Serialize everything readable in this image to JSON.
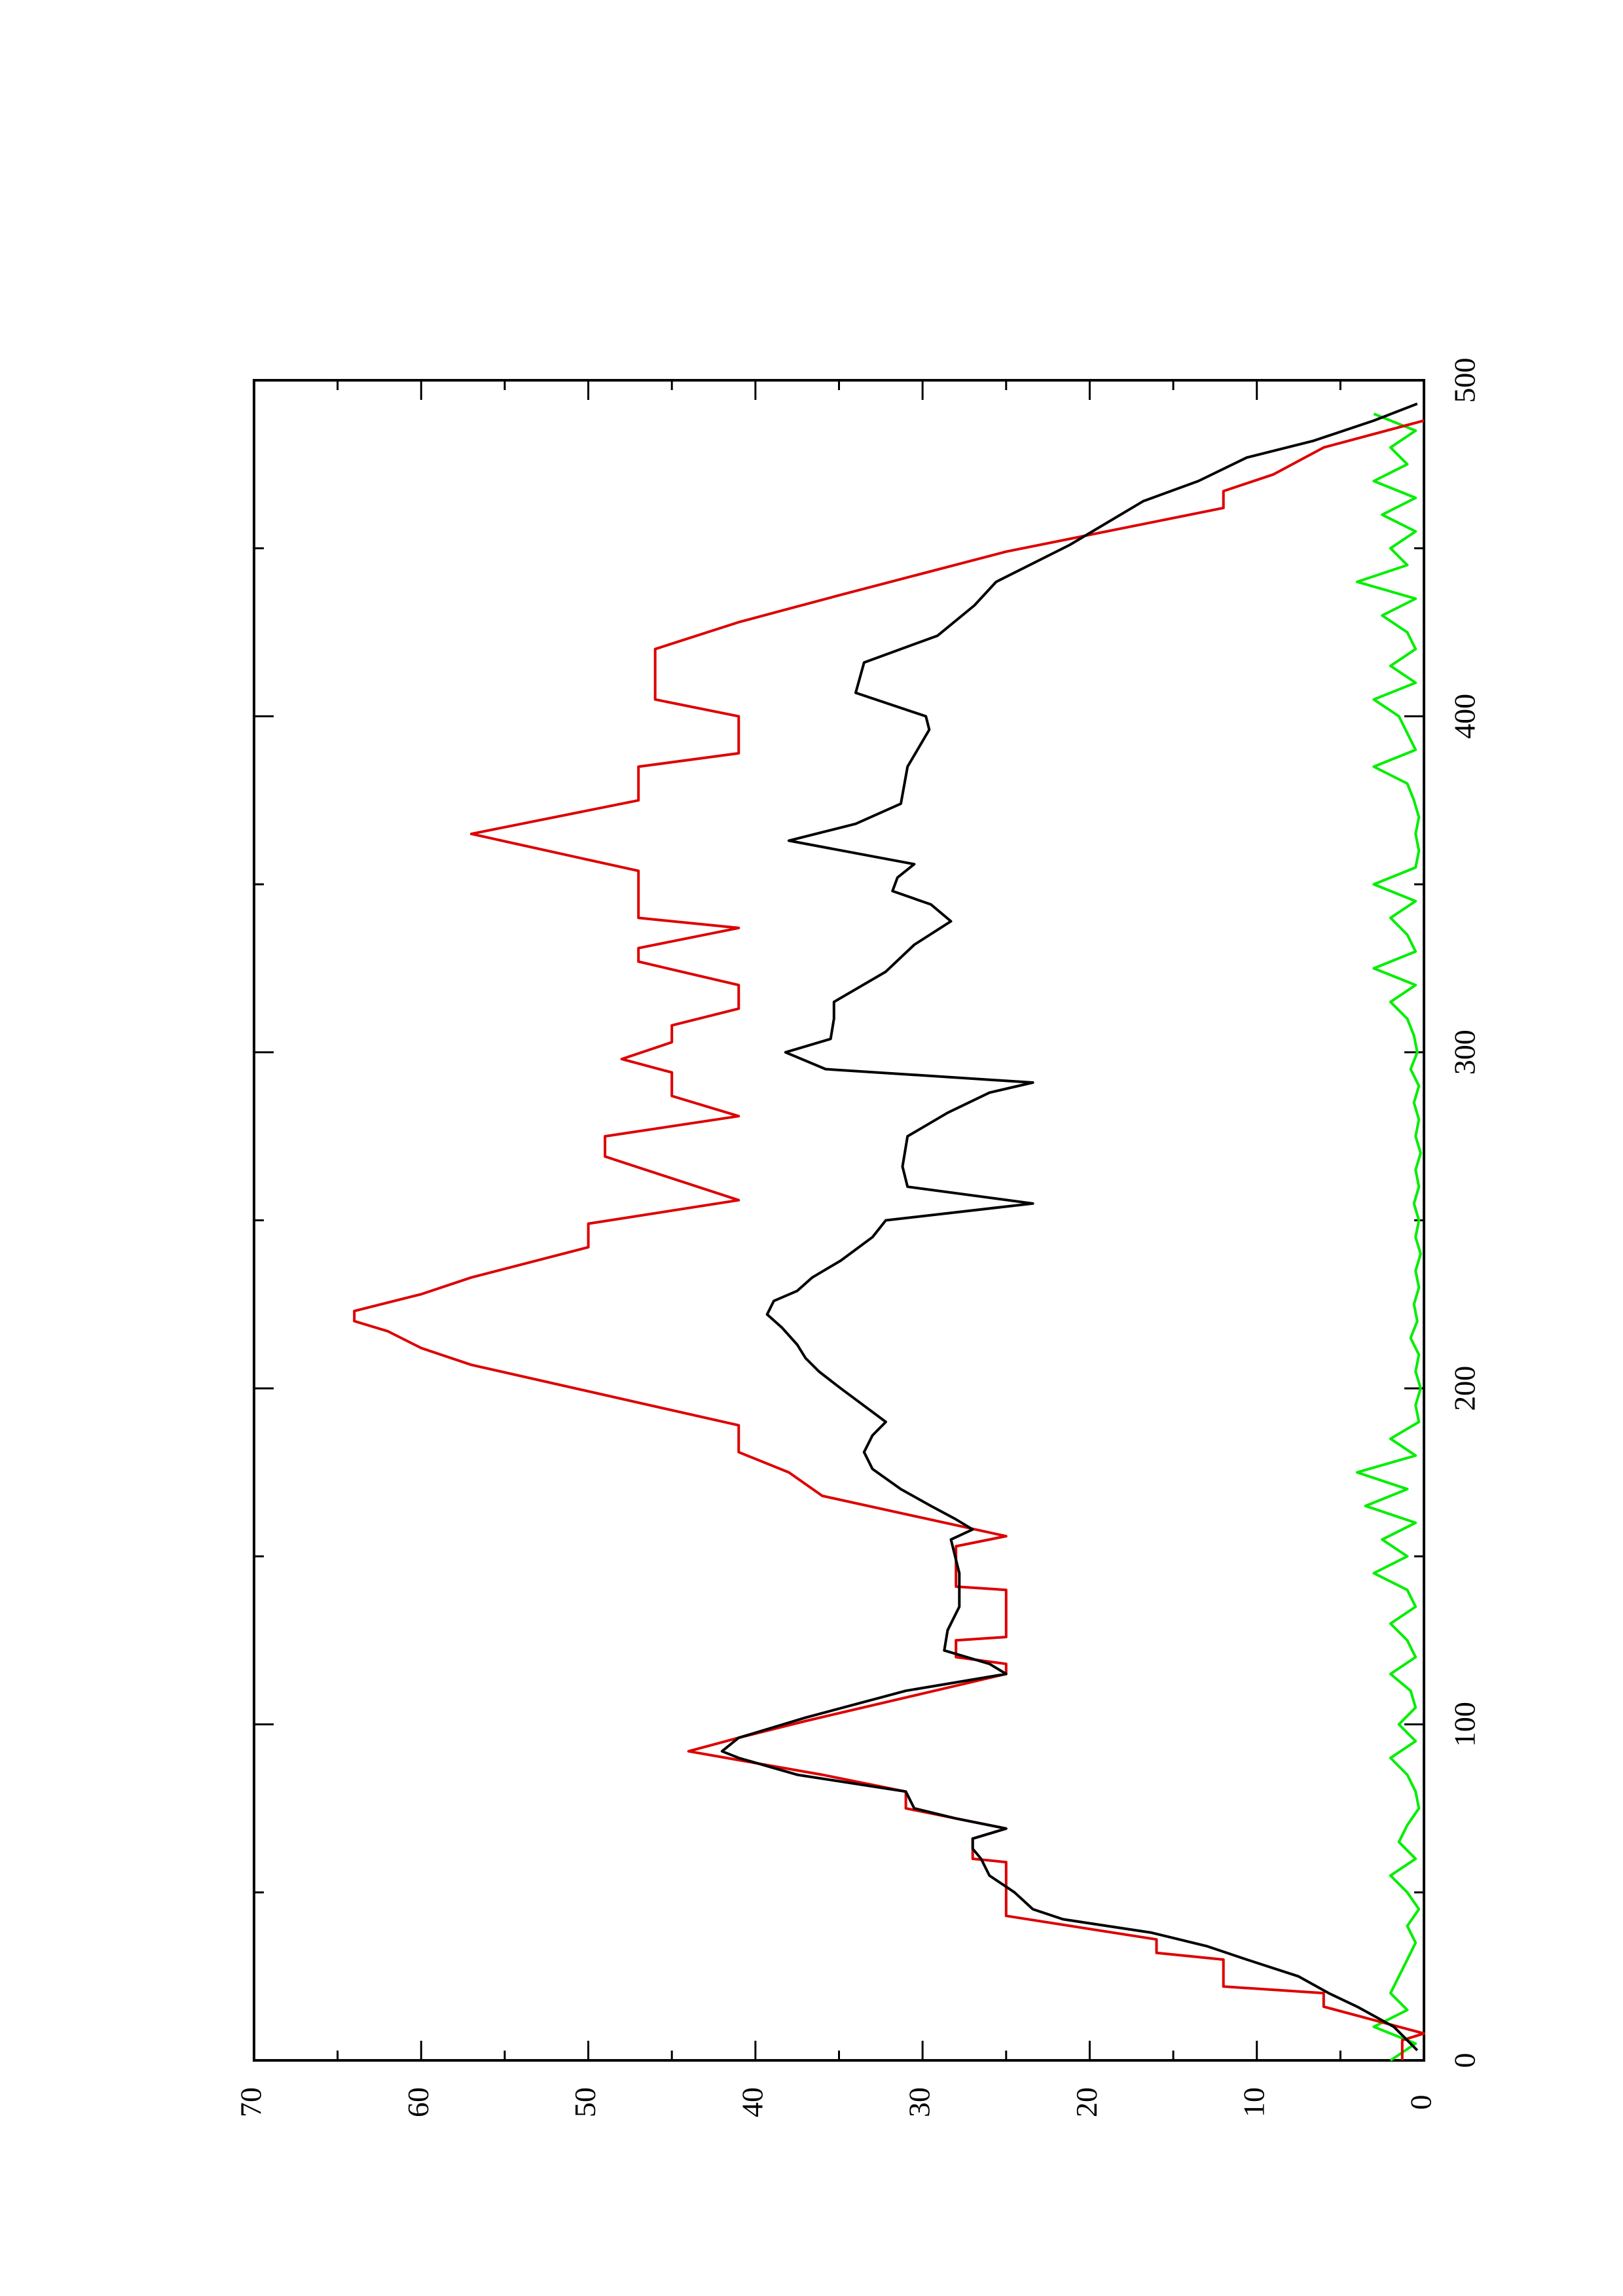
{
  "chart_data": {
    "type": "line",
    "xlim": [
      0,
      500
    ],
    "xticks": [
      0,
      100,
      200,
      300,
      400,
      500
    ],
    "x_minor_ticks": [
      50,
      150,
      250,
      350,
      450
    ],
    "ylim": [
      0,
      70
    ],
    "yticks": [
      0,
      10,
      20,
      30,
      40,
      50,
      60,
      70
    ],
    "y_minor_ticks": [
      5,
      15,
      25,
      35,
      45,
      55,
      65
    ],
    "rotated": true,
    "series": [
      {
        "color": "#000000",
        "x": [
          3,
          10,
          16,
          20,
          25,
          30,
          34,
          38,
          42,
          45,
          50,
          55,
          60,
          63,
          66,
          69,
          72,
          75,
          80,
          85,
          90,
          92,
          96,
          102,
          110,
          115,
          118,
          122,
          128,
          135,
          145,
          155,
          158,
          161,
          165,
          170,
          176,
          181,
          186,
          190,
          200,
          205,
          209,
          213,
          218,
          222,
          226,
          229,
          233,
          238,
          245,
          250,
          255,
          260,
          266,
          275,
          282,
          288,
          291,
          295,
          300,
          304,
          310,
          315,
          324,
          332,
          339,
          344,
          348,
          352,
          356,
          363,
          368,
          374,
          385,
          396,
          400,
          407,
          416,
          424,
          433,
          440,
          451,
          464,
          470,
          477,
          482,
          488,
          493
        ],
        "values": [
          0.4,
          1.8,
          4,
          5.7,
          7.5,
          10.6,
          13,
          16.3,
          21.6,
          23.4,
          24.5,
          26,
          26.5,
          27,
          27,
          25,
          28,
          30.5,
          31,
          37.5,
          41,
          42,
          41,
          37,
          31,
          25,
          26,
          28.7,
          28.5,
          27.8,
          27.8,
          28.3,
          27,
          28,
          29.5,
          31.3,
          33,
          33.5,
          33,
          32.2,
          34.9,
          36.2,
          37,
          37.5,
          38.4,
          39.3,
          38.9,
          37.5,
          36.6,
          34.9,
          33,
          32.2,
          23.4,
          30.9,
          31.2,
          30.9,
          28.5,
          26,
          23.4,
          35.8,
          38.2,
          35.5,
          35.3,
          35.3,
          32.2,
          30.5,
          28.3,
          29.5,
          31.8,
          31.5,
          30.5,
          38,
          34,
          31.3,
          30.9,
          29.6,
          29.8,
          34,
          33.5,
          29.1,
          26.9,
          25.6,
          21.2,
          16.8,
          13.5,
          10.6,
          6.6,
          3,
          0.4
        ]
      },
      {
        "color": "#dd0000",
        "x": [
          0,
          6,
          8,
          16,
          20,
          22,
          30,
          32,
          36,
          43,
          59,
          60,
          66,
          69,
          75,
          80,
          85,
          92,
          96,
          101,
          115,
          118,
          120,
          125,
          126,
          140,
          141,
          153,
          156,
          168,
          175,
          181,
          189,
          207,
          212,
          217,
          220,
          223,
          228,
          233,
          242,
          249,
          256,
          269,
          275,
          281,
          287,
          294,
          298,
          303,
          308,
          313,
          320,
          327,
          331,
          337,
          340,
          347,
          354,
          365,
          375,
          385,
          389,
          400,
          405,
          420,
          428,
          432,
          436,
          449,
          462,
          467,
          472,
          480,
          488
        ],
        "values": [
          1.3,
          1.3,
          0,
          6,
          6,
          12,
          12,
          16,
          16,
          25,
          25,
          27,
          27,
          25,
          31,
          31,
          36,
          44,
          41,
          37,
          25,
          25,
          28,
          28,
          25,
          25,
          28,
          28,
          25,
          36,
          38,
          41,
          41,
          57,
          60,
          62,
          64,
          64,
          60,
          57,
          50,
          50,
          41,
          49,
          49,
          41,
          45,
          45,
          48,
          45,
          45,
          41,
          41,
          47,
          47,
          41,
          47,
          47,
          47,
          57,
          47,
          47,
          41,
          41,
          46,
          46,
          41,
          38,
          35,
          25,
          12,
          12,
          9,
          6,
          0
        ]
      },
      {
        "color": "#00ee00",
        "x": [
          0,
          5,
          10,
          15,
          20,
          25,
          30,
          35,
          40,
          45,
          50,
          55,
          60,
          65,
          70,
          75,
          80,
          85,
          90,
          95,
          100,
          105,
          110,
          115,
          120,
          125,
          130,
          135,
          140,
          145,
          150,
          155,
          160,
          165,
          170,
          175,
          180,
          185,
          190,
          195,
          200,
          205,
          210,
          215,
          220,
          225,
          230,
          235,
          240,
          245,
          250,
          255,
          260,
          265,
          270,
          275,
          280,
          285,
          290,
          295,
          300,
          305,
          310,
          315,
          320,
          325,
          330,
          335,
          340,
          345,
          350,
          355,
          360,
          365,
          370,
          375,
          380,
          385,
          390,
          395,
          400,
          405,
          410,
          415,
          420,
          425,
          430,
          435,
          440,
          445,
          450,
          455,
          460,
          465,
          470,
          475,
          480,
          485,
          490
        ],
        "values": [
          2,
          0.5,
          3,
          1,
          2,
          1.5,
          1,
          0.5,
          1,
          0.3,
          1,
          2,
          0.5,
          1.5,
          1,
          0.3,
          0.5,
          1,
          2,
          0.5,
          1.5,
          0.5,
          0.8,
          2,
          0.5,
          1,
          2,
          0.5,
          1,
          3,
          1,
          2.5,
          0.5,
          3.5,
          1,
          4,
          0.5,
          2,
          0.3,
          0.5,
          0.2,
          0.5,
          0.3,
          0.8,
          0.4,
          0.6,
          0.3,
          0.5,
          0.2,
          0.5,
          0.3,
          0.6,
          0.3,
          0.5,
          0.2,
          0.5,
          0.3,
          0.6,
          0.3,
          0.8,
          0.4,
          0.6,
          1,
          2,
          0.5,
          3,
          0.5,
          1,
          2,
          0.5,
          3,
          0.5,
          0.3,
          0.5,
          0.3,
          0.6,
          1,
          3,
          0.5,
          1,
          1.5,
          3,
          0.5,
          2,
          0.5,
          1,
          2.5,
          0.5,
          4,
          1,
          2,
          0.5,
          2.5,
          0.5,
          3,
          1,
          2,
          0.5,
          3
        ]
      }
    ]
  }
}
